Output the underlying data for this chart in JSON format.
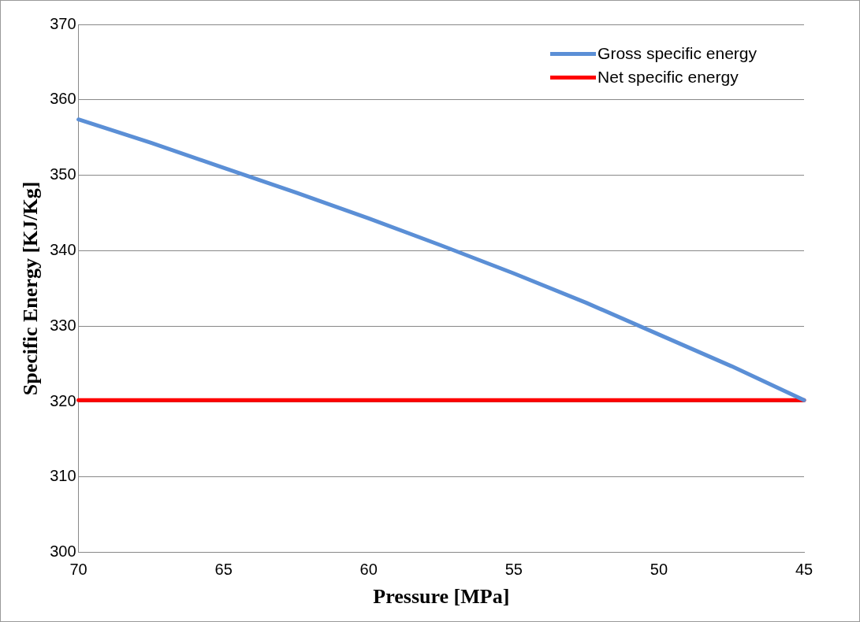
{
  "chart_data": {
    "type": "line",
    "xlabel": "Pressure [MPa]",
    "ylabel": "Specific Energy [KJ/Kg]",
    "x": [
      70,
      67.5,
      65,
      62.5,
      60,
      57.5,
      55,
      52.5,
      50,
      47.5,
      45
    ],
    "series": [
      {
        "name": "Gross specific energy",
        "color": "#5b8fd6",
        "values": [
          357.4,
          354.3,
          351.0,
          347.7,
          344.3,
          340.7,
          337.0,
          333.1,
          328.9,
          324.7,
          320.2
        ]
      },
      {
        "name": "Net specific energy",
        "color": "#ff0000",
        "values": [
          320.2,
          320.2,
          320.2,
          320.2,
          320.2,
          320.2,
          320.2,
          320.2,
          320.2,
          320.2,
          320.2
        ]
      }
    ],
    "xlim": [
      70,
      45
    ],
    "xticks": [
      70,
      65,
      60,
      55,
      50,
      45
    ],
    "ylim": [
      300,
      370
    ],
    "yticks": [
      300,
      310,
      320,
      330,
      340,
      350,
      360,
      370
    ],
    "grid": "y",
    "legend": "top right",
    "marker": "none",
    "line_style": "solid"
  }
}
